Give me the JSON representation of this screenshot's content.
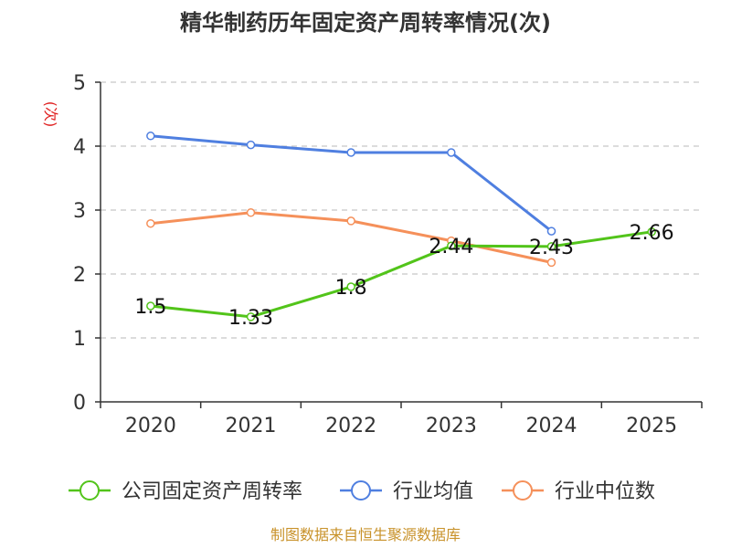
{
  "chart_data": {
    "type": "line",
    "title": "精华制药历年固定资产周转率情况(次)",
    "ylabel": "(次)",
    "xlabel": "",
    "categories": [
      "2020",
      "2021",
      "2022",
      "2023",
      "2024",
      "2025"
    ],
    "ylim": [
      0,
      5
    ],
    "yticks": [
      0,
      1,
      2,
      3,
      4,
      5
    ],
    "grid": true,
    "legend_position": "bottom",
    "series": [
      {
        "name": "公司固定资产周转率",
        "color": "#52c41a",
        "values": [
          1.5,
          1.33,
          1.8,
          2.44,
          2.43,
          2.66
        ],
        "labels": [
          "1.5",
          "1.33",
          "1.8",
          "2.44",
          "2.43",
          "2.66"
        ]
      },
      {
        "name": "行业均值",
        "color": "#4f7fe0",
        "values": [
          4.16,
          4.02,
          3.9,
          3.9,
          2.67,
          null
        ]
      },
      {
        "name": "行业中位数",
        "color": "#f5905a",
        "values": [
          2.79,
          2.96,
          2.83,
          2.52,
          2.18,
          null
        ]
      }
    ],
    "source": "制图数据来自恒生聚源数据库",
    "ylabel_color": "#e02020",
    "source_color": "#c8922a"
  }
}
